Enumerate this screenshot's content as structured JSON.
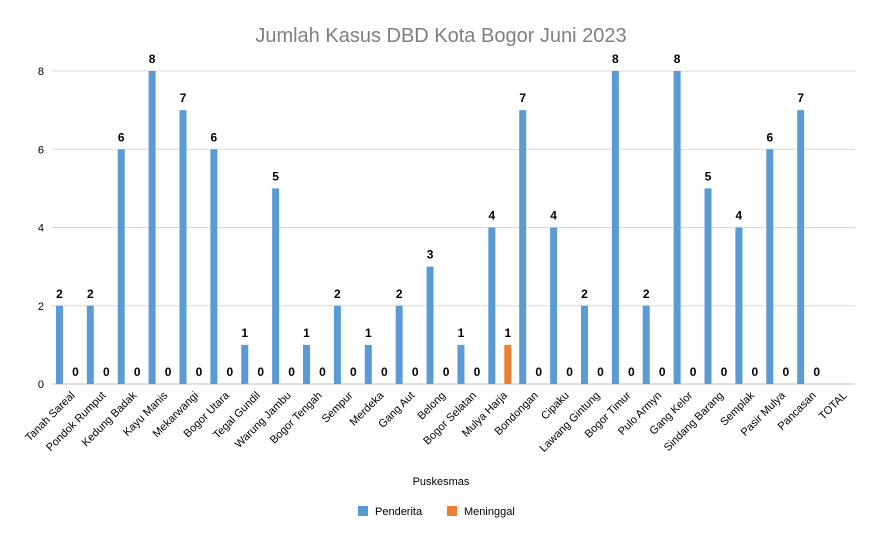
{
  "chart_data": {
    "type": "bar",
    "title": "Jumlah Kasus DBD Kota Bogor Juni 2023",
    "xlabel": "Puskesmas",
    "ylabel": "",
    "ylim": [
      0,
      8
    ],
    "yticks": [
      0,
      2,
      4,
      6,
      8
    ],
    "grid": true,
    "legend_position": "bottom",
    "categories": [
      "Tanah Sareal",
      "Pondok Rumput",
      "Kedung Badak",
      "Kayu Manis",
      "Mekarwangi",
      "Bogor Utara",
      "Tegal Gundil",
      "Warung Jambu",
      "Bogor Tengah",
      "Sempur",
      "Merdeka",
      "Gang Aut",
      "Belong",
      "Bogor Selatan",
      "Mulya Harja",
      "Bondongan",
      "Cipaku",
      "Lawang Gintung",
      "Bogor Timur",
      "Pulo Armyn",
      "Gang Kelor",
      "Sindang Barang",
      "Semplak",
      "Pasir Mulya",
      "Pancasan",
      "TOTAL"
    ],
    "series": [
      {
        "name": "Penderita",
        "color": "#5b9bd5",
        "values": [
          2,
          2,
          6,
          8,
          7,
          6,
          1,
          5,
          1,
          2,
          1,
          2,
          3,
          1,
          4,
          7,
          4,
          2,
          8,
          2,
          8,
          5,
          4,
          6,
          7,
          null
        ]
      },
      {
        "name": "Meninggal",
        "color": "#ed7d31",
        "values": [
          0,
          0,
          0,
          0,
          0,
          0,
          0,
          0,
          0,
          0,
          0,
          0,
          0,
          0,
          1,
          0,
          0,
          0,
          0,
          0,
          0,
          0,
          0,
          0,
          0,
          null
        ]
      }
    ]
  }
}
